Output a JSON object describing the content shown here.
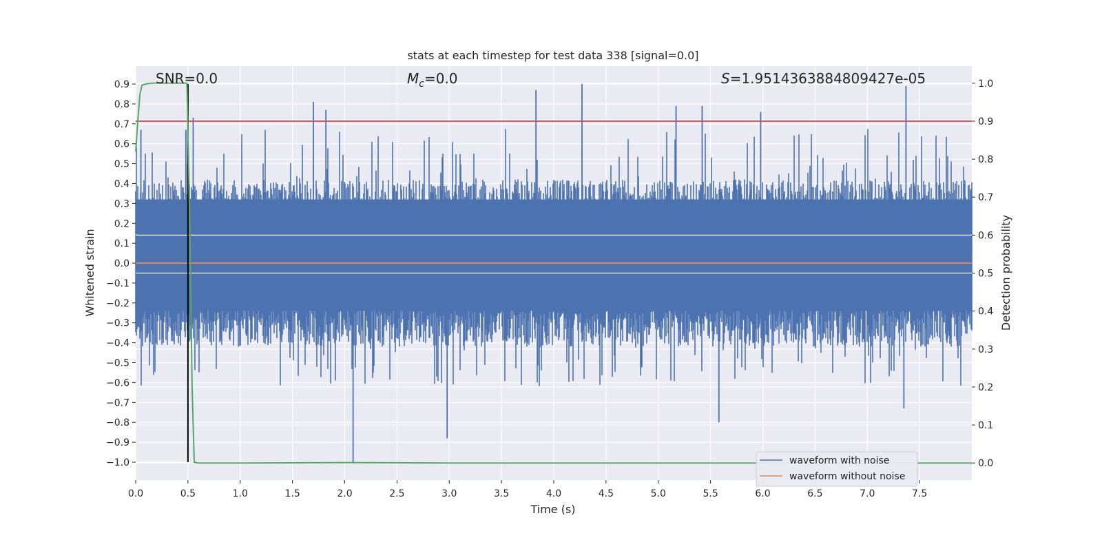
{
  "chart_data": {
    "type": "line",
    "title": "stats at each timestep for test data 338 [signal=0.0]",
    "xlabel": "Time (s)",
    "ylabel_left": "Whitened strain",
    "ylabel_right": "Detection probability",
    "xlim": [
      0.0,
      8.0
    ],
    "ylim_left": [
      -1.09,
      0.99
    ],
    "ylim_right": [
      -0.045,
      1.045
    ],
    "x_ticks": [
      "0.0",
      "0.5",
      "1.0",
      "1.5",
      "2.0",
      "2.5",
      "3.0",
      "3.5",
      "4.0",
      "4.5",
      "5.0",
      "5.5",
      "6.0",
      "6.5",
      "7.0",
      "7.5"
    ],
    "y_left_ticks": [
      "0.9",
      "0.8",
      "0.7",
      "0.6",
      "0.5",
      "0.4",
      "0.3",
      "0.2",
      "0.1",
      "0.0",
      "−0.1",
      "−0.2",
      "−0.3",
      "−0.4",
      "−0.5",
      "−0.6",
      "−0.7",
      "−0.8",
      "−0.9",
      "−1.0"
    ],
    "y_right_ticks": [
      "1.0",
      "0.9",
      "0.8",
      "0.7",
      "0.6",
      "0.5",
      "0.4",
      "0.3",
      "0.2",
      "0.1",
      "0.0"
    ],
    "grid": true,
    "legend_location": "lower-right",
    "series": [
      {
        "name": "waveform with noise",
        "axis": "left",
        "color": "#4c72b0",
        "kind": "noise",
        "x_range": [
          0.0,
          8.0
        ],
        "typical_range": [
          -0.42,
          0.42
        ],
        "peak_max": 0.9,
        "peak_min": -1.0,
        "spikes": [
          {
            "x": 0.05,
            "y": 0.67
          },
          {
            "x": 0.48,
            "y": 0.67
          },
          {
            "x": 0.55,
            "y": 0.73
          },
          {
            "x": 1.7,
            "y": 0.81
          },
          {
            "x": 1.82,
            "y": 0.77
          },
          {
            "x": 2.08,
            "y": -1.0
          },
          {
            "x": 2.98,
            "y": -0.88
          },
          {
            "x": 3.83,
            "y": 0.87
          },
          {
            "x": 4.27,
            "y": 0.9
          },
          {
            "x": 5.17,
            "y": 0.79
          },
          {
            "x": 5.42,
            "y": 0.79
          },
          {
            "x": 5.58,
            "y": -0.8
          },
          {
            "x": 5.98,
            "y": 0.76
          },
          {
            "x": 7.37,
            "y": 0.89
          },
          {
            "x": 7.35,
            "y": -0.73
          }
        ]
      },
      {
        "name": "waveform without noise",
        "axis": "left",
        "color": "#dd8452",
        "x": [
          0.0,
          8.0
        ],
        "y": [
          0.0,
          0.0
        ]
      },
      {
        "name": "",
        "axis": "right",
        "color": "#55a868",
        "x": [
          0.0,
          0.02,
          0.04,
          0.06,
          0.1,
          0.15,
          0.2,
          0.3,
          0.4,
          0.49,
          0.52,
          0.54,
          0.56,
          0.6,
          1.0,
          2.0,
          3.0,
          4.0,
          5.0,
          6.0,
          7.0,
          8.0
        ],
        "y": [
          0.82,
          0.9,
          0.97,
          0.995,
          0.998,
          1.0,
          1.0,
          1.0,
          1.0,
          1.0,
          0.6,
          0.2,
          0.002,
          0.0,
          0.0,
          0.001,
          0.0,
          0.0,
          0.0,
          0.0,
          0.0,
          0.0
        ]
      }
    ],
    "threshold": {
      "axis": "right",
      "value": 0.9,
      "color": "#c44e52"
    },
    "vline": {
      "x": 0.5,
      "y_range": [
        -1.0,
        0.9
      ],
      "color": "#000000"
    },
    "annotations": [
      {
        "text": "SNR=0.0",
        "x": 0.19,
        "y": 0.93
      },
      {
        "text": "Mc=0.0",
        "x": 2.6,
        "y": 0.93
      },
      {
        "text": "S=1.9514363884809427e-05",
        "x": 5.6,
        "y": 0.93
      }
    ]
  }
}
